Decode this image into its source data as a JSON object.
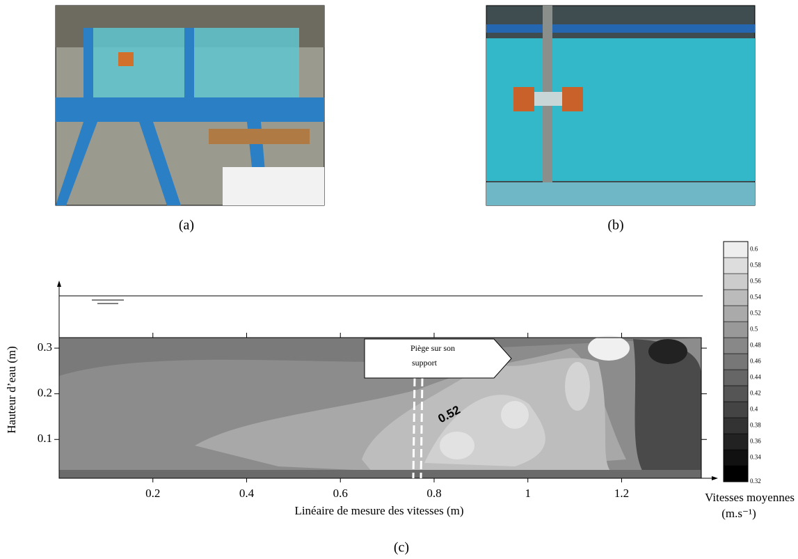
{
  "panels": [
    {
      "label": "(a)"
    },
    {
      "label": "(b)"
    }
  ],
  "chart_data": {
    "type": "contour",
    "label": "(c)",
    "xlabel": "Linéaire de mesure des vitesses (m)",
    "ylabel": "Hauteur d’eau (m)",
    "xlim": [
      0,
      1.37
    ],
    "xticks": [
      0.2,
      0.4,
      0.6,
      0.8,
      1,
      1.2
    ],
    "ylim": [
      0.015,
      0.323
    ],
    "yticks": [
      0.1,
      0.2,
      0.3
    ],
    "annotations": {
      "trap": [
        "Piège sur son",
        "support"
      ],
      "contour": "0.52"
    },
    "colorbar": {
      "title": "Vitesses moyennes",
      "unit": "(m.s⁻¹)",
      "lim": [
        0.32,
        0.62
      ],
      "ticks": [
        0.32,
        0.34,
        0.36,
        0.38,
        0.4,
        0.42,
        0.44,
        0.46,
        0.48,
        0.5,
        0.52,
        0.54,
        0.56,
        0.58,
        0.6
      ]
    }
  }
}
